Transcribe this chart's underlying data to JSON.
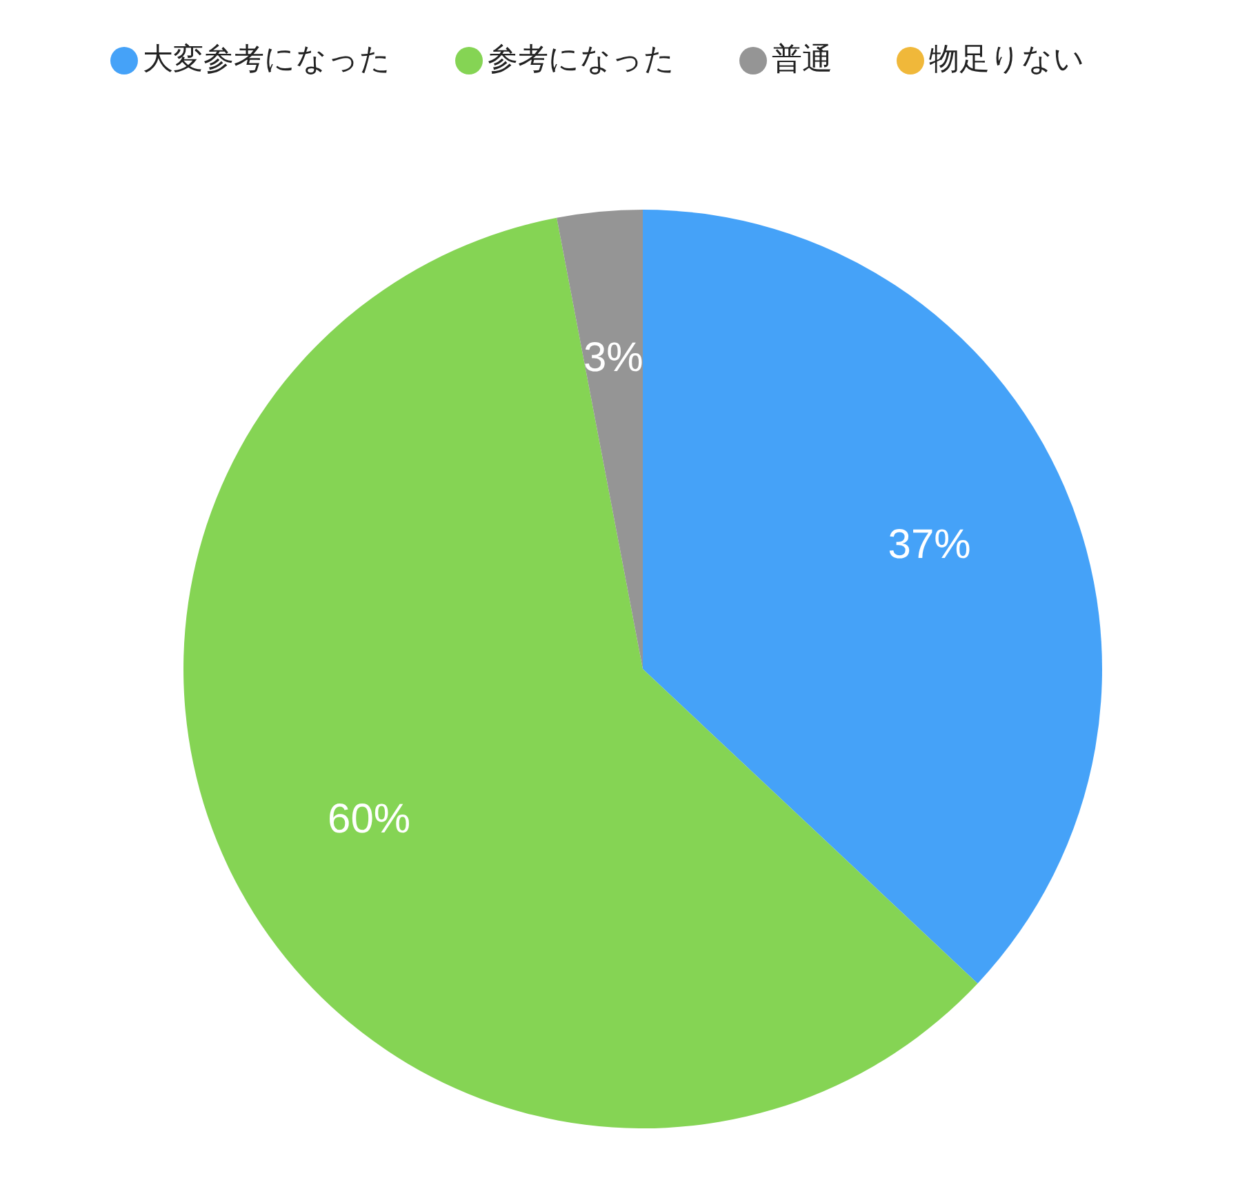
{
  "chart_data": {
    "type": "pie",
    "categories": [
      "大変参考になった",
      "参考になった",
      "普通",
      "物足りない"
    ],
    "values": [
      37,
      60,
      3,
      0
    ],
    "colors": [
      "#45a2f8",
      "#85d454",
      "#959595",
      "#f0b83a"
    ],
    "value_labels": [
      "37%",
      "60%",
      "3%",
      null
    ],
    "legend": "top"
  }
}
